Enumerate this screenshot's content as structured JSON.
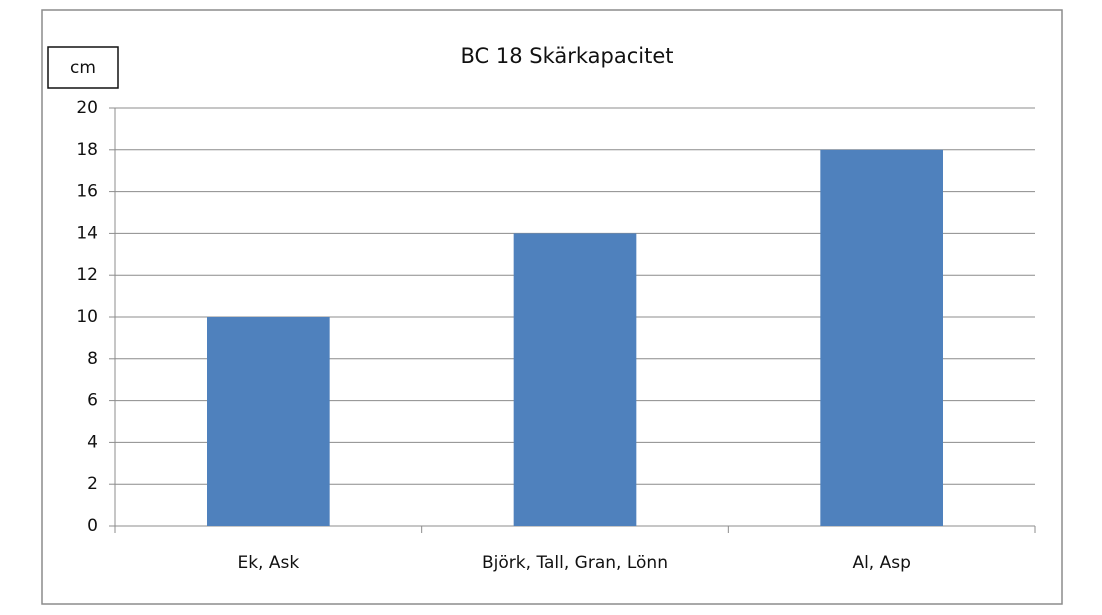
{
  "chart_data": {
    "type": "bar",
    "title": "BC 18 Skärkapacitet",
    "y_label": "cm",
    "categories": [
      "Ek, Ask",
      "Björk, Tall, Gran, Lönn",
      "Al, Asp"
    ],
    "values": [
      10,
      14,
      18
    ],
    "color": "#4f81bd",
    "ylim": [
      0,
      20
    ],
    "yticks": [
      0,
      2,
      4,
      6,
      8,
      10,
      12,
      14,
      16,
      18,
      20
    ],
    "grid": true
  }
}
